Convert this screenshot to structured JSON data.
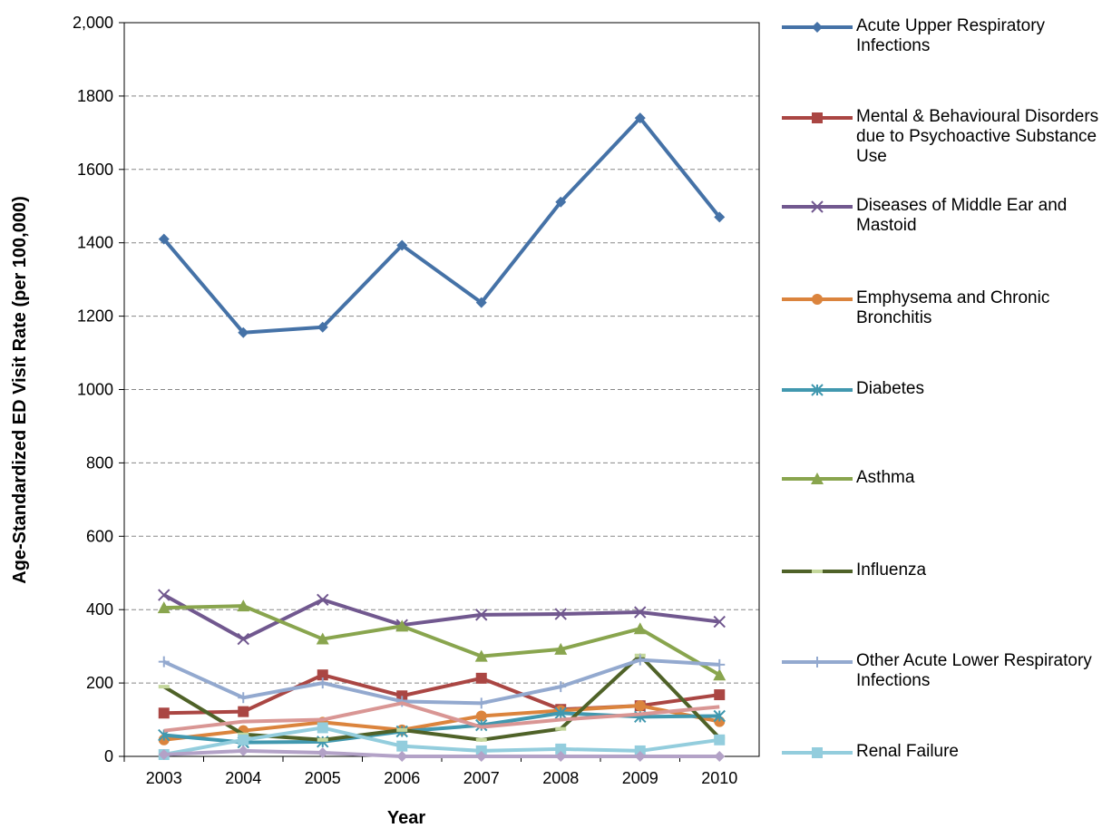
{
  "chart_data": {
    "type": "line",
    "x_label": "Year",
    "y_label": "Age-Standardized ED Visit Rate (per 100,000)",
    "categories": [
      "2003",
      "2004",
      "2005",
      "2006",
      "2007",
      "2008",
      "2009",
      "2010"
    ],
    "ylim": [
      0,
      2000
    ],
    "yticks": [
      0,
      200,
      400,
      600,
      800,
      1000,
      1200,
      1400,
      1600,
      1800,
      {
        "value": 2000,
        "label": "2,000"
      }
    ],
    "ytick_labels_fmt": null,
    "grid": true,
    "series": [
      {
        "name": "Acute Upper Respiratory Infections",
        "color": "#4572a7",
        "marker": "diamond",
        "values": [
          1410,
          1155,
          1170,
          1393,
          1237,
          1511,
          1740,
          1470
        ]
      },
      {
        "name": "Mental & Behavioural Disorders due to Psychoactive Substance Use",
        "color": "#aa4643",
        "marker": "square",
        "values": [
          118,
          122,
          222,
          165,
          213,
          128,
          138,
          168
        ]
      },
      {
        "name": "Diseases of Middle Ear and Mastoid",
        "color": "#71588f",
        "marker": "x",
        "values": [
          440,
          320,
          427,
          358,
          386,
          388,
          393,
          367
        ]
      },
      {
        "name": "Emphysema and Chronic Bronchitis",
        "color": "#db843d",
        "marker": "circle",
        "values": [
          45,
          70,
          93,
          72,
          110,
          125,
          138,
          95
        ]
      },
      {
        "name": "Diabetes",
        "color": "#4198af",
        "marker": "star",
        "values": [
          58,
          38,
          40,
          68,
          85,
          118,
          108,
          110
        ]
      },
      {
        "name": "Asthma",
        "color": "#89a54e",
        "marker": "triangle",
        "values": [
          405,
          410,
          320,
          355,
          273,
          292,
          348,
          222
        ]
      },
      {
        "name": "Influenza",
        "color": "#4f6228",
        "marker": "dash",
        "values": [
          190,
          60,
          45,
          72,
          45,
          75,
          275,
          50
        ]
      },
      {
        "name": "Other Acute Lower Respiratory Infections",
        "color": "#93a9cf",
        "marker": "plus",
        "values": [
          258,
          160,
          200,
          150,
          145,
          190,
          263,
          250
        ]
      },
      {
        "name": "Renal Failure",
        "color": "#93cddd",
        "marker": "square",
        "values": [
          5,
          45,
          78,
          28,
          15,
          20,
          15,
          45
        ]
      },
      {
        "color": "#d99694",
        "marker": "none",
        "values": [
          70,
          95,
          100,
          145,
          80,
          100,
          115,
          135
        ]
      },
      {
        "color": "#b3a2c7",
        "marker": "diamond",
        "values": [
          5,
          15,
          10,
          0,
          0,
          0,
          0,
          0
        ]
      }
    ]
  }
}
